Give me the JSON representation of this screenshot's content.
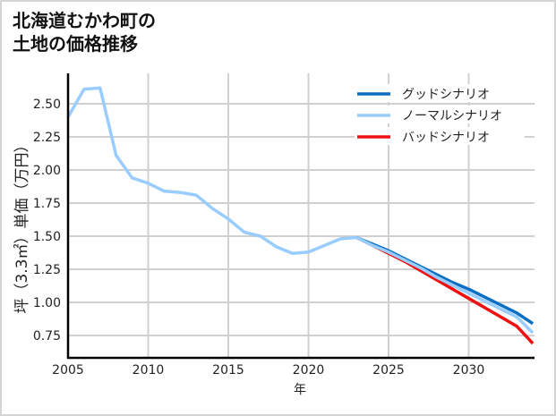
{
  "title": {
    "line1": "北海道むかわ町の",
    "line2": "土地の価格推移"
  },
  "chart_data": {
    "type": "line",
    "title": "北海道むかわ町の土地の価格推移",
    "xlabel": "年",
    "ylabel": "坪（3.3㎡）単価（万円）",
    "xlim": [
      2005,
      2034
    ],
    "ylim": [
      0.58,
      2.73
    ],
    "x_ticks": [
      "2005",
      "2010",
      "2015",
      "2020",
      "2025",
      "2030"
    ],
    "y_ticks": [
      "0.75",
      "1.00",
      "1.25",
      "1.50",
      "1.75",
      "2.00",
      "2.25",
      "2.50"
    ],
    "grid": true,
    "legend_position": "upper right",
    "historical": {
      "x": [
        2005,
        2006,
        2007,
        2008,
        2009,
        2010,
        2011,
        2012,
        2013,
        2014,
        2015,
        2016,
        2017,
        2018,
        2019,
        2020,
        2021,
        2022,
        2023
      ],
      "values": [
        2.4,
        2.61,
        2.62,
        2.11,
        1.94,
        1.9,
        1.84,
        1.83,
        1.81,
        1.71,
        1.63,
        1.53,
        1.5,
        1.42,
        1.37,
        1.38,
        1.43,
        1.48,
        1.49
      ],
      "color": "#99ccff"
    },
    "series": [
      {
        "name": "グッドシナリオ",
        "color": "#0a6fc2",
        "x": [
          2023,
          2024,
          2025,
          2026,
          2027,
          2028,
          2029,
          2030,
          2031,
          2032,
          2033,
          2034
        ],
        "values": [
          1.49,
          1.44,
          1.39,
          1.33,
          1.27,
          1.21,
          1.15,
          1.1,
          1.04,
          0.98,
          0.92,
          0.84
        ]
      },
      {
        "name": "ノーマルシナリオ",
        "color": "#99ccff",
        "x": [
          2023,
          2024,
          2025,
          2026,
          2027,
          2028,
          2029,
          2030,
          2031,
          2032,
          2033,
          2034
        ],
        "values": [
          1.49,
          1.43,
          1.38,
          1.32,
          1.26,
          1.19,
          1.13,
          1.07,
          1.01,
          0.95,
          0.89,
          0.77
        ]
      },
      {
        "name": "バッドシナリオ",
        "color": "#ee1111",
        "x": [
          2023,
          2024,
          2025,
          2026,
          2027,
          2028,
          2029,
          2030,
          2031,
          2032,
          2033,
          2034
        ],
        "values": [
          1.49,
          1.43,
          1.37,
          1.31,
          1.24,
          1.17,
          1.1,
          1.03,
          0.96,
          0.89,
          0.82,
          0.69
        ]
      }
    ]
  },
  "legend": [
    {
      "label": "グッドシナリオ",
      "color": "#0a6fc2"
    },
    {
      "label": "ノーマルシナリオ",
      "color": "#99ccff"
    },
    {
      "label": "バッドシナリオ",
      "color": "#ee1111"
    }
  ]
}
